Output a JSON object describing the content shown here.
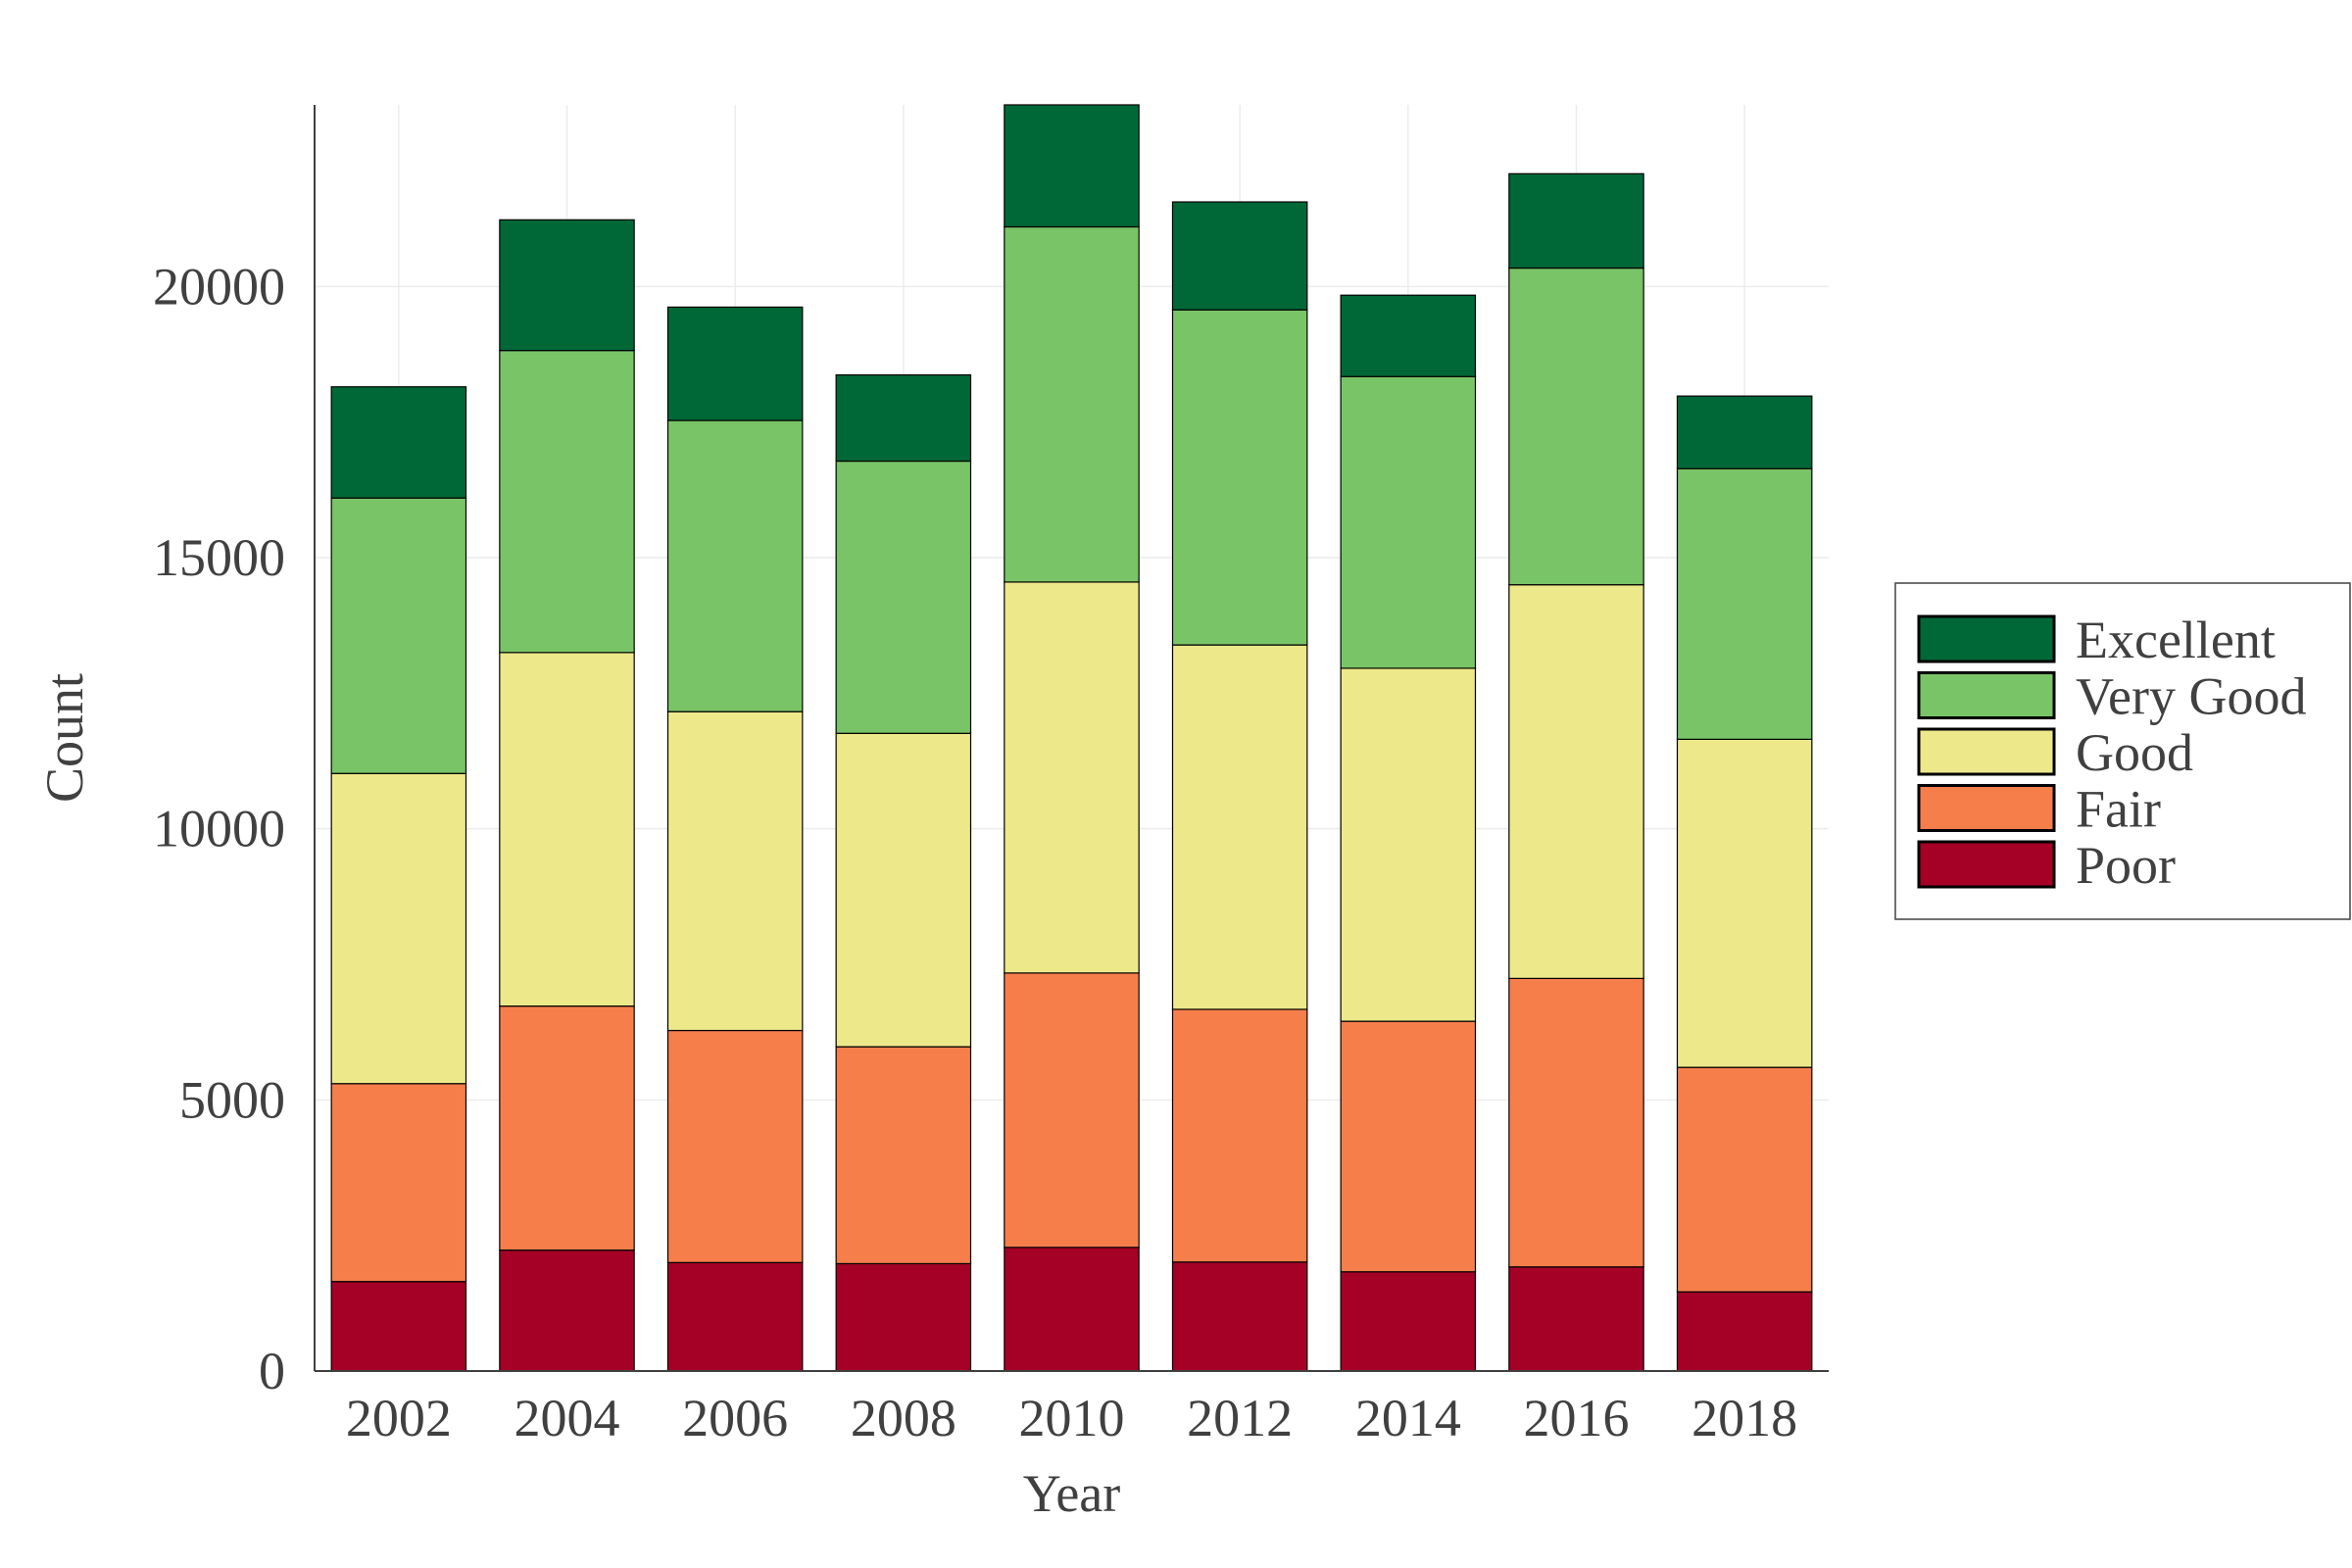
{
  "chart_data": {
    "type": "bar",
    "stacked": true,
    "xlabel": "Year",
    "ylabel": "Count",
    "categories": [
      "2002",
      "2004",
      "2006",
      "2008",
      "2010",
      "2012",
      "2014",
      "2016",
      "2018"
    ],
    "ylim": [
      0,
      23350
    ],
    "yticks": [
      0,
      5000,
      10000,
      15000,
      20000
    ],
    "grid": true,
    "legend_position": "right",
    "series": [
      {
        "name": "Poor",
        "color": "#a50026",
        "values": [
          1650,
          2230,
          2000,
          1980,
          2280,
          2010,
          1830,
          1920,
          1460
        ]
      },
      {
        "name": "Fair",
        "color": "#f67e4b",
        "values": [
          3650,
          4500,
          4280,
          4000,
          5060,
          4660,
          4620,
          5320,
          4140
        ]
      },
      {
        "name": "Good",
        "color": "#ede88a",
        "values": [
          5720,
          6520,
          5880,
          5780,
          7210,
          6720,
          6510,
          7260,
          6050
        ]
      },
      {
        "name": "Very Good",
        "color": "#78c466",
        "values": [
          5080,
          5570,
          5370,
          5020,
          6550,
          6180,
          5380,
          5840,
          4990
        ]
      },
      {
        "name": "Excellent",
        "color": "#006837",
        "values": [
          2050,
          2410,
          2090,
          1590,
          2250,
          1990,
          1500,
          1740,
          1340
        ]
      }
    ]
  }
}
